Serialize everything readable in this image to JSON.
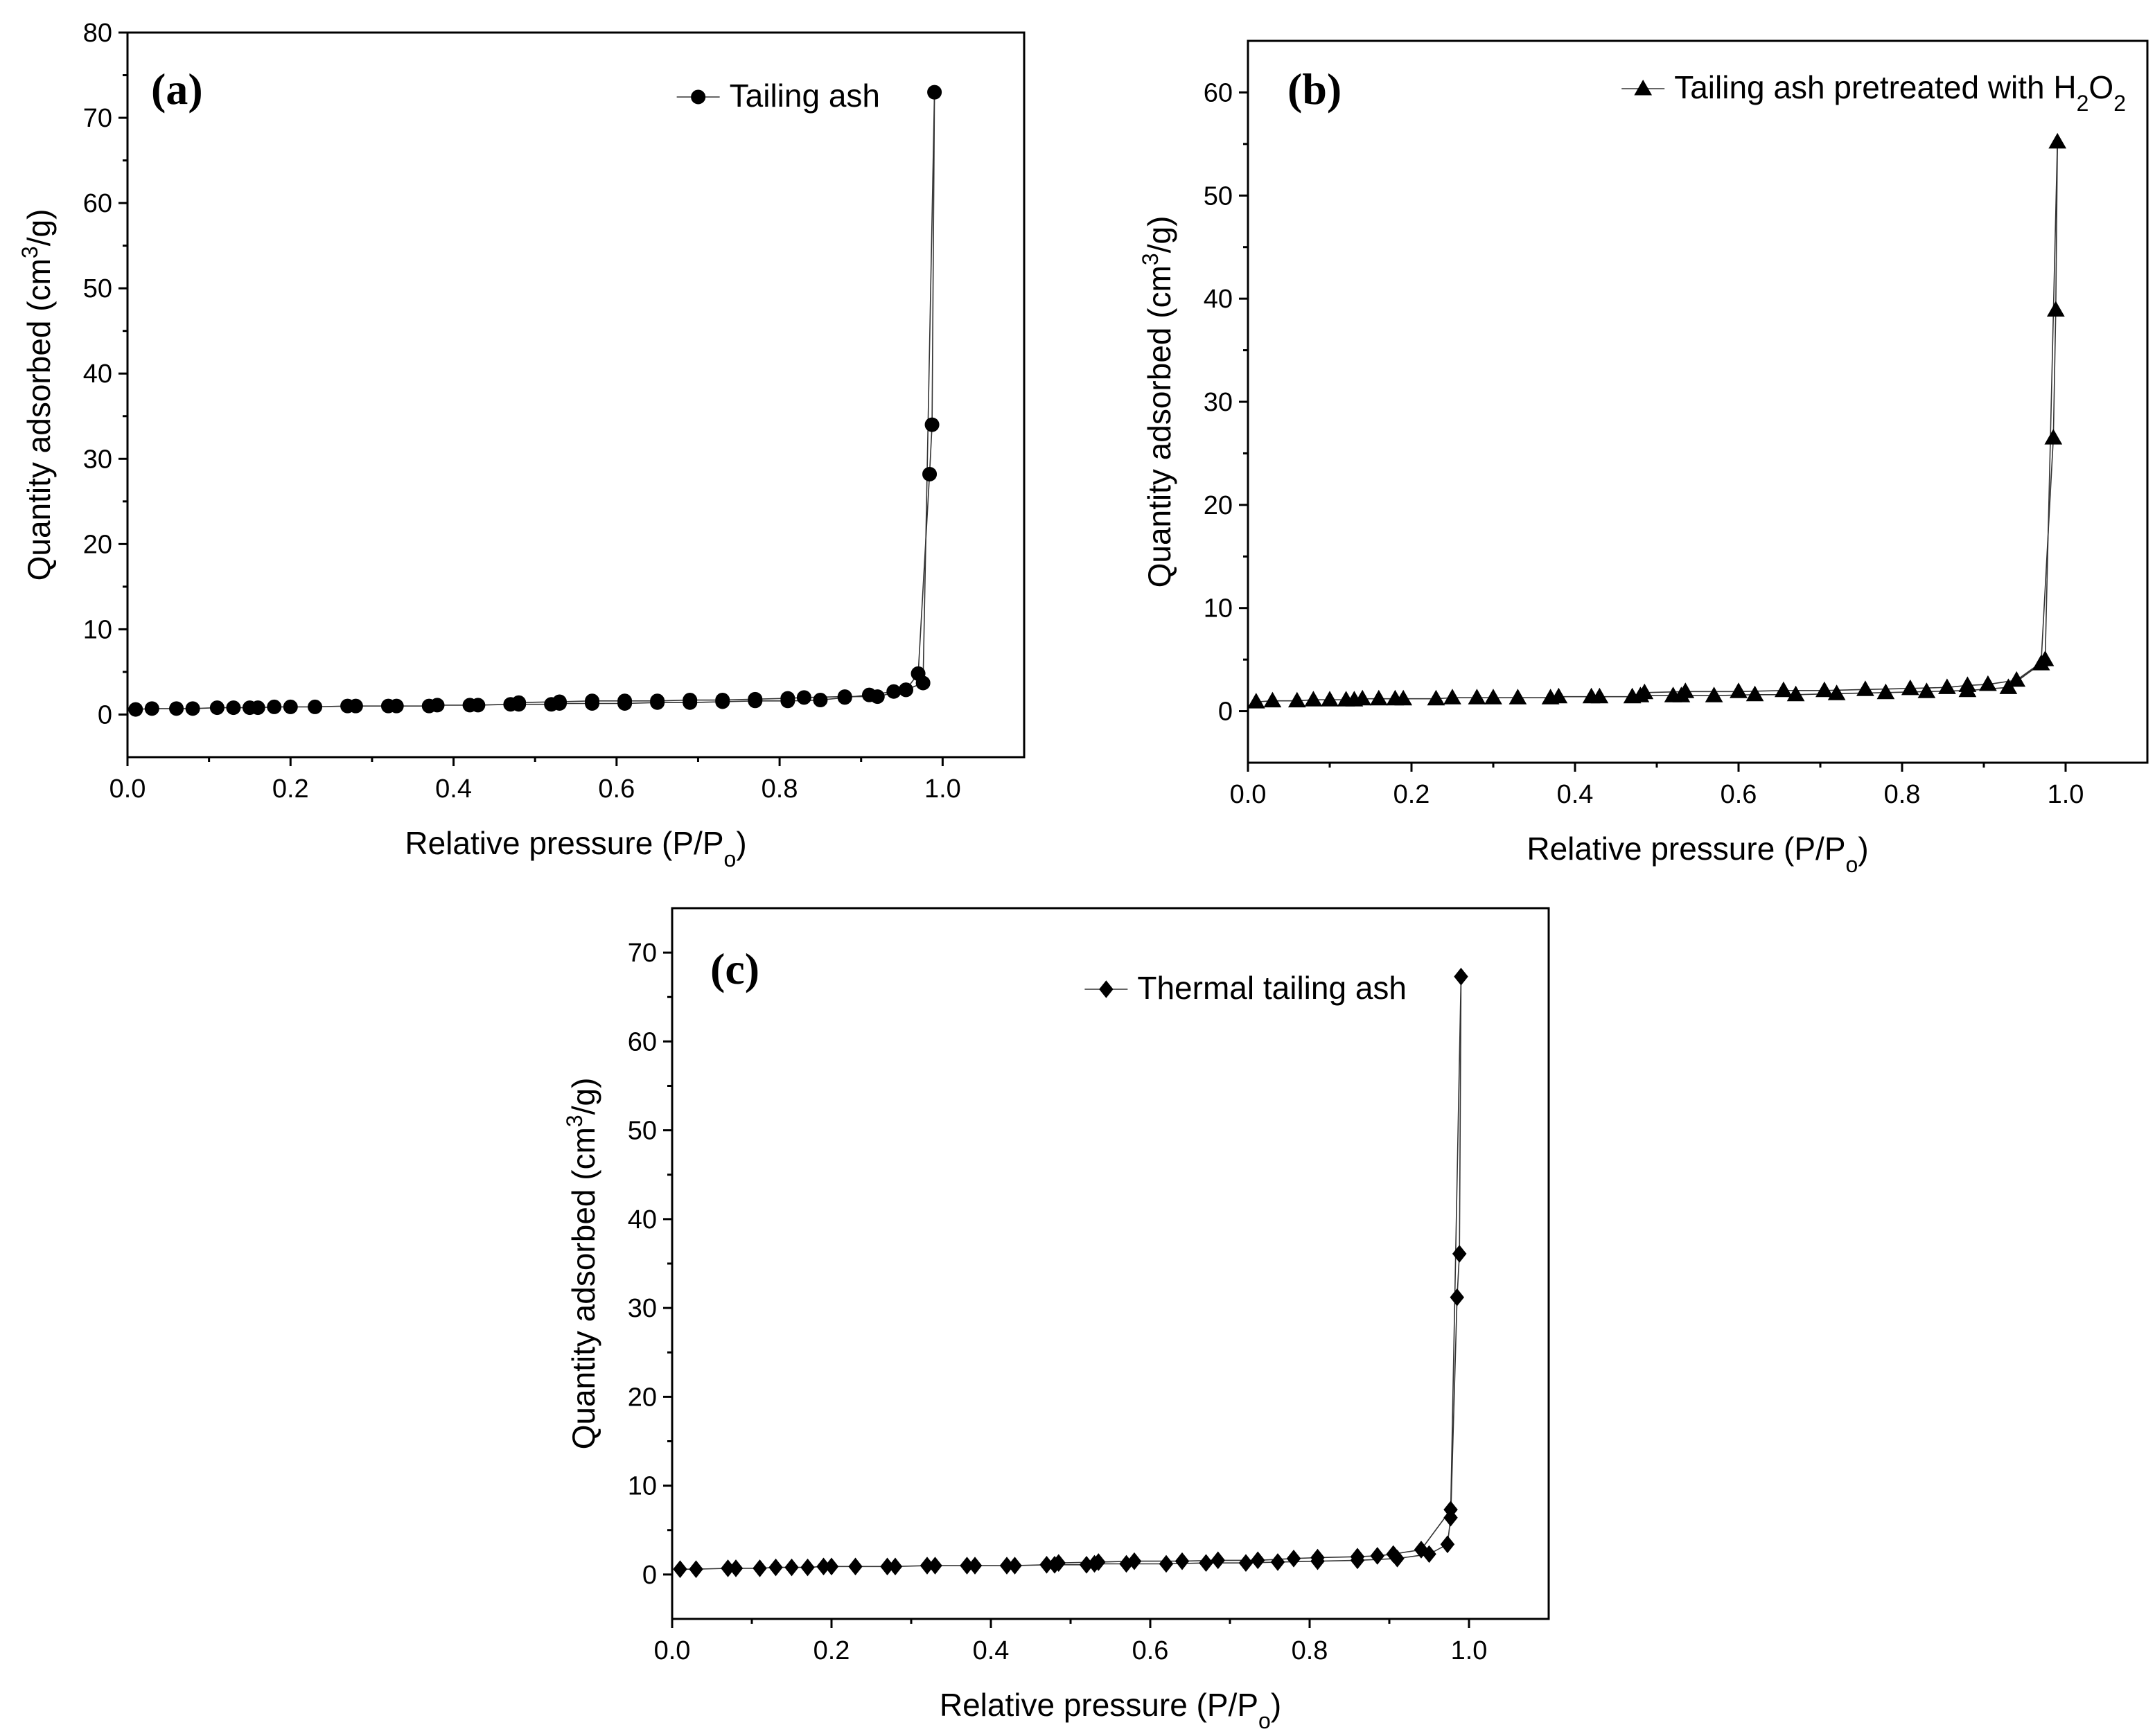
{
  "chart_data": [
    {
      "type": "line",
      "panel_label": "(a)",
      "legend": "Tailing ash",
      "legend_sub": "",
      "legend_suffix": "",
      "legend_position": "top-right",
      "marker": "circle",
      "xlabel": "Relative pressure (P/P",
      "xlabel_sub": "o",
      "xlabel_suffix": ")",
      "ylabel": "Quantity adsorbed (cm",
      "ylabel_sup": "3",
      "ylabel_suffix": "/g)",
      "xlim": [
        0.0,
        1.1
      ],
      "ylim": [
        -5,
        80
      ],
      "x_ticks": [
        0.0,
        0.2,
        0.4,
        0.6,
        0.8,
        1.0
      ],
      "x_tick_labels": [
        "0.0",
        "0.2",
        "0.4",
        "0.6",
        "0.8",
        "1.0"
      ],
      "y_ticks": [
        0,
        10,
        20,
        30,
        40,
        50,
        60,
        70,
        80
      ],
      "y_tick_labels": [
        "0",
        "10",
        "20",
        "30",
        "40",
        "50",
        "60",
        "70",
        "80"
      ],
      "adsorption": {
        "x": [
          0.01,
          0.03,
          0.06,
          0.08,
          0.11,
          0.13,
          0.15,
          0.16,
          0.18,
          0.2,
          0.23,
          0.27,
          0.28,
          0.32,
          0.33,
          0.37,
          0.38,
          0.42,
          0.43,
          0.47,
          0.48,
          0.52,
          0.53,
          0.57,
          0.61,
          0.65,
          0.69,
          0.73,
          0.77,
          0.81,
          0.85,
          0.88,
          0.91,
          0.94,
          0.955,
          0.97,
          0.984,
          0.987,
          0.99
        ],
        "y": [
          0.6,
          0.7,
          0.7,
          0.7,
          0.8,
          0.8,
          0.8,
          0.8,
          0.9,
          0.9,
          0.9,
          1.0,
          1.0,
          1.0,
          1.0,
          1.0,
          1.1,
          1.1,
          1.1,
          1.2,
          1.2,
          1.2,
          1.3,
          1.3,
          1.3,
          1.4,
          1.4,
          1.5,
          1.6,
          1.6,
          1.7,
          2.0,
          2.3,
          2.7,
          2.9,
          4.8,
          28.2,
          34.0,
          73.0
        ]
      },
      "desorption": {
        "x": [
          0.99,
          0.976,
          0.955,
          0.92,
          0.88,
          0.83,
          0.81,
          0.77,
          0.73,
          0.69,
          0.65,
          0.61,
          0.57,
          0.53,
          0.48
        ],
        "y": [
          73.0,
          3.7,
          2.9,
          2.1,
          2.1,
          2.0,
          1.9,
          1.8,
          1.7,
          1.7,
          1.6,
          1.6,
          1.6,
          1.5,
          1.4
        ]
      }
    },
    {
      "type": "line",
      "panel_label": "(b)",
      "legend": "Tailing ash pretreated with H",
      "legend_sub": "2",
      "legend_mid": "O",
      "legend_sub2": "2",
      "legend_position": "top-right",
      "marker": "triangle",
      "xlabel": "Relative pressure (P/P",
      "xlabel_sub": "o",
      "xlabel_suffix": ")",
      "ylabel": "Quantity adsorbed (cm",
      "ylabel_sup": "3",
      "ylabel_suffix": "/g)",
      "xlim": [
        0.0,
        1.1
      ],
      "ylim": [
        -5,
        65
      ],
      "x_ticks": [
        0.0,
        0.2,
        0.4,
        0.6,
        0.8,
        1.0
      ],
      "x_tick_labels": [
        "0.0",
        "0.2",
        "0.4",
        "0.6",
        "0.8",
        "1.0"
      ],
      "y_ticks": [
        0,
        10,
        20,
        30,
        40,
        50,
        60
      ],
      "y_tick_labels": [
        "0",
        "10",
        "20",
        "30",
        "40",
        "50",
        "60"
      ],
      "adsorption": {
        "x": [
          0.01,
          0.03,
          0.06,
          0.08,
          0.1,
          0.12,
          0.13,
          0.14,
          0.16,
          0.18,
          0.19,
          0.23,
          0.25,
          0.28,
          0.3,
          0.33,
          0.37,
          0.38,
          0.42,
          0.43,
          0.47,
          0.48,
          0.52,
          0.53,
          0.57,
          0.62,
          0.67,
          0.72,
          0.78,
          0.83,
          0.88,
          0.93,
          0.97,
          0.985,
          0.988,
          0.99
        ],
        "y": [
          0.9,
          1.0,
          1.0,
          1.1,
          1.1,
          1.1,
          1.1,
          1.2,
          1.2,
          1.2,
          1.2,
          1.2,
          1.3,
          1.3,
          1.3,
          1.3,
          1.3,
          1.4,
          1.4,
          1.4,
          1.4,
          1.5,
          1.5,
          1.5,
          1.5,
          1.6,
          1.6,
          1.7,
          1.8,
          1.9,
          2.0,
          2.3,
          4.6,
          26.5,
          38.9,
          55.2
        ]
      },
      "desorption": {
        "x": [
          0.99,
          0.975,
          0.94,
          0.905,
          0.88,
          0.855,
          0.81,
          0.755,
          0.705,
          0.655,
          0.6,
          0.535,
          0.485
        ],
        "y": [
          55.2,
          5.0,
          3.0,
          2.6,
          2.5,
          2.3,
          2.2,
          2.1,
          2.0,
          2.0,
          1.9,
          1.9,
          1.8
        ]
      }
    },
    {
      "type": "line",
      "panel_label": "(c)",
      "legend": "Thermal tailing ash",
      "legend_sub": "",
      "legend_suffix": "",
      "legend_position": "top-right",
      "marker": "diamond",
      "xlabel": "Relative pressure (P/P",
      "xlabel_sub": "o",
      "xlabel_suffix": ")",
      "ylabel": "Quantity adsorbed (cm",
      "ylabel_sup": "3",
      "ylabel_suffix": "/g)",
      "xlim": [
        0.0,
        1.1
      ],
      "ylim": [
        -5,
        75
      ],
      "x_ticks": [
        0.0,
        0.2,
        0.4,
        0.6,
        0.8,
        1.0
      ],
      "x_tick_labels": [
        "0.0",
        "0.2",
        "0.4",
        "0.6",
        "0.8",
        "1.0"
      ],
      "y_ticks": [
        0,
        10,
        20,
        30,
        40,
        50,
        60,
        70
      ],
      "y_tick_labels": [
        "0",
        "10",
        "20",
        "30",
        "40",
        "50",
        "60",
        "70"
      ],
      "adsorption": {
        "x": [
          0.01,
          0.03,
          0.07,
          0.08,
          0.11,
          0.13,
          0.15,
          0.17,
          0.19,
          0.2,
          0.23,
          0.27,
          0.28,
          0.32,
          0.33,
          0.37,
          0.38,
          0.42,
          0.43,
          0.47,
          0.48,
          0.52,
          0.53,
          0.57,
          0.62,
          0.67,
          0.72,
          0.76,
          0.81,
          0.86,
          0.91,
          0.95,
          0.973,
          0.977,
          0.985,
          0.988,
          0.99
        ],
        "y": [
          0.6,
          0.6,
          0.7,
          0.7,
          0.7,
          0.8,
          0.8,
          0.8,
          0.9,
          0.9,
          0.9,
          0.9,
          0.9,
          1.0,
          1.0,
          1.0,
          1.0,
          1.0,
          1.0,
          1.1,
          1.1,
          1.1,
          1.2,
          1.2,
          1.2,
          1.3,
          1.3,
          1.4,
          1.5,
          1.6,
          1.8,
          2.3,
          3.4,
          6.4,
          31.2,
          36.1,
          67.3
        ]
      },
      "desorption": {
        "x": [
          0.99,
          0.977,
          0.94,
          0.905,
          0.885,
          0.86,
          0.81,
          0.78,
          0.735,
          0.685,
          0.64,
          0.58,
          0.535,
          0.485
        ],
        "y": [
          67.3,
          7.3,
          2.8,
          2.3,
          2.1,
          2.0,
          1.9,
          1.8,
          1.6,
          1.6,
          1.5,
          1.5,
          1.4,
          1.3
        ]
      }
    }
  ]
}
